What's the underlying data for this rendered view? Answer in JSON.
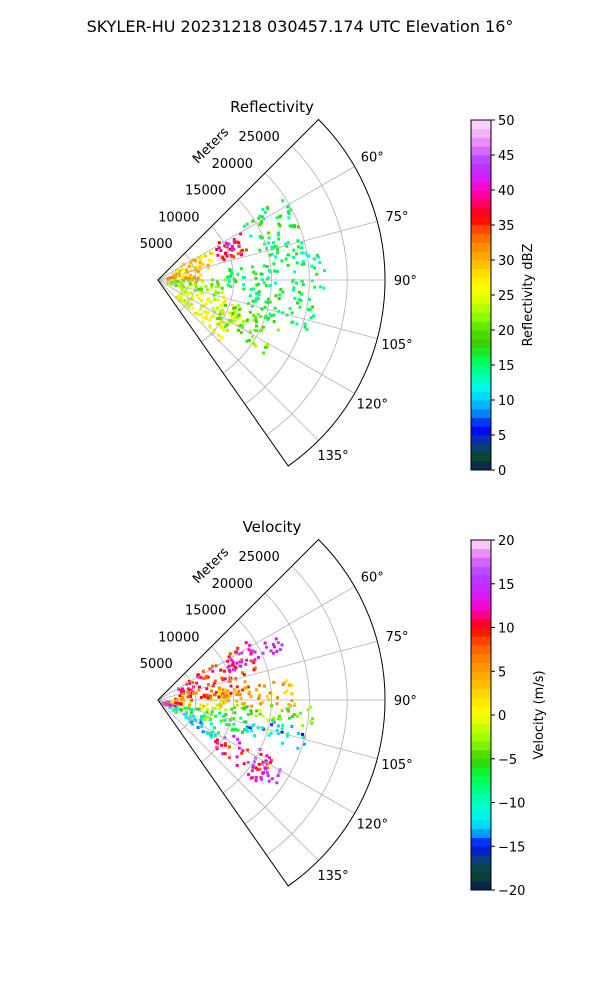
{
  "figure": {
    "suptitle": "SKYLER-HU  20231218  030457.174 UTC Elevation 16°"
  },
  "chart_data": [
    {
      "type": "heatmap",
      "title": "Reflectivity",
      "radial_label": "Meters",
      "radial_ticks": [
        5000,
        10000,
        15000,
        20000,
        25000
      ],
      "radial_tick_labels": [
        "5000",
        "10000",
        "15000",
        "20000",
        "25000"
      ],
      "rlim": [
        0,
        30000
      ],
      "azimuth_ticks": [
        60,
        75,
        90,
        105,
        120,
        135
      ],
      "azimuth_tick_labels": [
        "60°",
        "75°",
        "90°",
        "105°",
        "120°",
        "135°"
      ],
      "azimuth_range": [
        45,
        145
      ],
      "grid": true,
      "colorbar": {
        "label": "Reflectivity dBZ",
        "range": [
          0,
          50
        ],
        "ticks": [
          0,
          5,
          10,
          15,
          20,
          25,
          30,
          35,
          40,
          45,
          50
        ],
        "tick_labels": [
          "0",
          "5",
          "10",
          "15",
          "20",
          "25",
          "30",
          "35",
          "40",
          "45",
          "50"
        ],
        "color_stops": [
          [
            0,
            "#0a1a5a"
          ],
          [
            2,
            "#0a4a2a"
          ],
          [
            4,
            "#0a3aa0"
          ],
          [
            6,
            "#0000ff"
          ],
          [
            8,
            "#007ff0"
          ],
          [
            10,
            "#00cfff"
          ],
          [
            12,
            "#00ffe0"
          ],
          [
            14,
            "#00ff9a"
          ],
          [
            16,
            "#00ff40"
          ],
          [
            18,
            "#3ad000"
          ],
          [
            20,
            "#50e000"
          ],
          [
            22,
            "#90ff00"
          ],
          [
            24,
            "#d0ff00"
          ],
          [
            26,
            "#ffff00"
          ],
          [
            28,
            "#ffe000"
          ],
          [
            30,
            "#ffb400"
          ],
          [
            32,
            "#ff8a00"
          ],
          [
            34,
            "#ff5a00"
          ],
          [
            36,
            "#ff0000"
          ],
          [
            38,
            "#ff0060"
          ],
          [
            40,
            "#ff00c0"
          ],
          [
            42,
            "#d020ff"
          ],
          [
            44,
            "#b040ff"
          ],
          [
            46,
            "#e070ff"
          ],
          [
            48,
            "#f0b0f0"
          ],
          [
            50,
            "#ffe0ff"
          ]
        ]
      },
      "echo_regions": [
        {
          "az": [
            57,
            72
          ],
          "r": [
            8000,
            13000
          ],
          "value": 37
        },
        {
          "az": [
            60,
            68
          ],
          "r": [
            9000,
            11500
          ],
          "value": 42
        },
        {
          "az": [
            55,
            75
          ],
          "r": [
            2000,
            8000
          ],
          "value": 28
        },
        {
          "az": [
            70,
            88
          ],
          "r": [
            1000,
            6000
          ],
          "value": 30
        },
        {
          "az": [
            88,
            105
          ],
          "r": [
            1000,
            9000
          ],
          "value": 22
        },
        {
          "az": [
            105,
            135
          ],
          "r": [
            3000,
            12000
          ],
          "value": 25
        },
        {
          "az": [
            108,
            125
          ],
          "r": [
            9000,
            17000
          ],
          "value": 20
        },
        {
          "az": [
            55,
            78
          ],
          "r": [
            13000,
            20000
          ],
          "value": 16
        },
        {
          "az": [
            78,
            95
          ],
          "r": [
            9000,
            22000
          ],
          "value": 15
        },
        {
          "az": [
            95,
            110
          ],
          "r": [
            12000,
            21000
          ],
          "value": 16
        }
      ]
    },
    {
      "type": "heatmap",
      "title": "Velocity",
      "radial_label": "Meters",
      "radial_ticks": [
        5000,
        10000,
        15000,
        20000,
        25000
      ],
      "radial_tick_labels": [
        "5000",
        "10000",
        "15000",
        "20000",
        "25000"
      ],
      "rlim": [
        0,
        30000
      ],
      "azimuth_ticks": [
        60,
        75,
        90,
        105,
        120,
        135
      ],
      "azimuth_tick_labels": [
        "60°",
        "75°",
        "90°",
        "105°",
        "120°",
        "135°"
      ],
      "azimuth_range": [
        45,
        145
      ],
      "grid": true,
      "colorbar": {
        "label": "Velocity (m/s)",
        "range": [
          -20,
          20
        ],
        "ticks": [
          -20,
          -15,
          -10,
          -5,
          0,
          5,
          10,
          15,
          20
        ],
        "tick_labels": [
          "−20",
          "−15",
          "−10",
          "−5",
          "0",
          "5",
          "10",
          "15",
          "20"
        ],
        "color_stops": [
          [
            -20,
            "#0a1a5a"
          ],
          [
            -18,
            "#0a4a2a"
          ],
          [
            -16,
            "#0a3aa0"
          ],
          [
            -15,
            "#0000ff"
          ],
          [
            -13,
            "#00cfff"
          ],
          [
            -11,
            "#00ffe0"
          ],
          [
            -9,
            "#00ff9a"
          ],
          [
            -7,
            "#00ff40"
          ],
          [
            -5,
            "#3ad000"
          ],
          [
            -3,
            "#90ff00"
          ],
          [
            -1,
            "#d0ff00"
          ],
          [
            0,
            "#ffff00"
          ],
          [
            2,
            "#ffe000"
          ],
          [
            4,
            "#ffb400"
          ],
          [
            6,
            "#ff8a00"
          ],
          [
            8,
            "#ff5a00"
          ],
          [
            10,
            "#ff0000"
          ],
          [
            11,
            "#ff0060"
          ],
          [
            12,
            "#ff00c0"
          ],
          [
            14,
            "#d020ff"
          ],
          [
            16,
            "#b040ff"
          ],
          [
            18,
            "#e070ff"
          ],
          [
            19,
            "#f0b0f0"
          ],
          [
            20,
            "#ffe0ff"
          ]
        ]
      },
      "echo_regions": [
        {
          "az": [
            55,
            72
          ],
          "r": [
            3000,
            14000
          ],
          "value": 10
        },
        {
          "az": [
            58,
            68
          ],
          "r": [
            10000,
            18000
          ],
          "value": 14
        },
        {
          "az": [
            72,
            88
          ],
          "r": [
            2000,
            12000
          ],
          "value": 8
        },
        {
          "az": [
            80,
            95
          ],
          "r": [
            8000,
            18000
          ],
          "value": 4
        },
        {
          "az": [
            88,
            100
          ],
          "r": [
            1000,
            9000
          ],
          "value": 1
        },
        {
          "az": [
            100,
            112
          ],
          "r": [
            1000,
            12000
          ],
          "value": -6
        },
        {
          "az": [
            112,
            125
          ],
          "r": [
            1000,
            9000
          ],
          "value": -11
        },
        {
          "az": [
            115,
            130
          ],
          "r": [
            9000,
            17000
          ],
          "value": 11
        },
        {
          "az": [
            118,
            128
          ],
          "r": [
            14000,
            19000
          ],
          "value": 15
        },
        {
          "az": [
            100,
            110
          ],
          "r": [
            12000,
            20000
          ],
          "value": -12
        },
        {
          "az": [
            92,
            100
          ],
          "r": [
            9000,
            21000
          ],
          "value": -4
        },
        {
          "az": [
            95,
            115
          ],
          "r": [
            500,
            3000
          ],
          "value": 13
        }
      ]
    }
  ]
}
